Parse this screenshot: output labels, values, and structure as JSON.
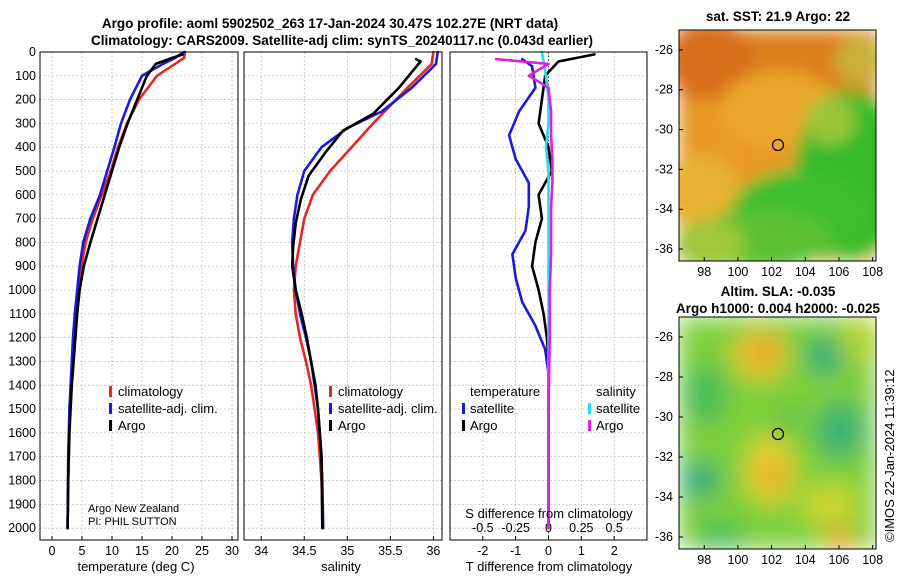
{
  "title": {
    "line1": "Argo profile: aoml 5902502_263 17-Jan-2024 30.47S 102.27E (NRT data)",
    "line2": "Climatology: CARS2009. Satellite-adj clim: synTS_20240117.nc (0.043d earlier)"
  },
  "footer": {
    "provider": "Argo New Zealand",
    "pi": "PI: PHIL SUTTON",
    "imos": "©IMOS 22-Jan-2024 11:39:12"
  },
  "colors": {
    "climatology": "#e8261e",
    "satellite": "#1a1adc",
    "argo": "#000000",
    "sat_salinity": "#22e0f0",
    "argo_salinity": "#e020e0"
  },
  "chart_data": [
    {
      "id": "temperature",
      "type": "line",
      "xlabel": "temperature (deg C)",
      "ylabel": "",
      "xlim": [
        -2,
        31
      ],
      "ylim": [
        2050,
        0
      ],
      "xticks": [
        "0",
        "5",
        "10",
        "15",
        "20",
        "25",
        "30"
      ],
      "yticks": [
        "0",
        "100",
        "200",
        "300",
        "400",
        "500",
        "600",
        "700",
        "800",
        "900",
        "1000",
        "1100",
        "1200",
        "1300",
        "1400",
        "1500",
        "1600",
        "1700",
        "1800",
        "1900",
        "2000"
      ],
      "legend": [
        "climatology",
        "satellite-adj. clim.",
        "Argo"
      ],
      "series": [
        {
          "name": "climatology",
          "color": "#e8261e",
          "x": [
            22.2,
            22.0,
            20.5,
            17.5,
            14.5,
            12.5,
            11.0,
            9.8,
            8.3,
            6.8,
            5.6,
            4.9,
            4.4,
            4.0,
            3.7,
            3.4,
            3.2,
            3.0,
            2.9,
            2.8,
            2.7,
            2.6
          ],
          "y": [
            0,
            25,
            50,
            100,
            200,
            300,
            400,
            500,
            600,
            700,
            800,
            900,
            1000,
            1100,
            1200,
            1300,
            1400,
            1500,
            1600,
            1700,
            1800,
            2000
          ]
        },
        {
          "name": "satellite-adj. clim.",
          "color": "#1a1adc",
          "x": [
            22.0,
            20.5,
            18.5,
            15.0,
            13.0,
            11.5,
            10.4,
            9.2,
            8.0,
            6.4,
            5.2,
            4.6,
            4.2,
            3.8,
            3.5,
            3.3,
            3.1,
            2.9,
            2.8,
            2.7,
            2.6
          ],
          "y": [
            0,
            25,
            50,
            100,
            200,
            300,
            400,
            500,
            600,
            700,
            800,
            900,
            1000,
            1100,
            1200,
            1300,
            1400,
            1500,
            1600,
            1700,
            2000
          ]
        },
        {
          "name": "Argo",
          "color": "#000000",
          "x": [
            21.8,
            20.0,
            17.3,
            15.8,
            14.2,
            12.6,
            11.2,
            10.0,
            8.8,
            7.6,
            6.4,
            5.3,
            4.6,
            4.2,
            3.9,
            3.6,
            3.3,
            3.1,
            2.9,
            2.7,
            2.6
          ],
          "y": [
            10,
            25,
            50,
            100,
            200,
            300,
            400,
            500,
            600,
            700,
            800,
            900,
            1000,
            1100,
            1200,
            1300,
            1400,
            1500,
            1600,
            1800,
            2000
          ]
        }
      ]
    },
    {
      "id": "salinity",
      "type": "line",
      "xlabel": "salinity",
      "xlim": [
        33.8,
        36.1
      ],
      "ylim": [
        2050,
        0
      ],
      "xticks": [
        "34",
        "34.5",
        "35",
        "35.5",
        "36"
      ],
      "legend": [
        "climatology",
        "satellite-adj. clim.",
        "Argo"
      ],
      "series": [
        {
          "name": "climatology",
          "color": "#e8261e",
          "x": [
            36.0,
            35.98,
            35.7,
            35.3,
            35.05,
            34.8,
            34.6,
            34.5,
            34.45,
            34.4,
            34.38,
            34.4,
            34.45,
            34.52,
            34.58,
            34.62,
            34.66,
            34.68,
            34.7,
            34.71,
            34.72
          ],
          "y": [
            0,
            50,
            150,
            300,
            400,
            500,
            600,
            700,
            800,
            900,
            1000,
            1100,
            1200,
            1300,
            1400,
            1500,
            1600,
            1700,
            1800,
            1900,
            2000
          ]
        },
        {
          "name": "satellite-adj. clim.",
          "color": "#1a1adc",
          "x": [
            36.05,
            36.03,
            35.75,
            35.4,
            35.0,
            34.7,
            34.5,
            34.42,
            34.38,
            34.36,
            34.37,
            34.4,
            34.45,
            34.52,
            34.58,
            34.62,
            34.66,
            34.68,
            34.7,
            34.71,
            34.72
          ],
          "y": [
            0,
            50,
            150,
            250,
            320,
            400,
            500,
            600,
            700,
            800,
            900,
            1000,
            1100,
            1200,
            1300,
            1400,
            1500,
            1600,
            1700,
            1800,
            2000
          ]
        },
        {
          "name": "Argo",
          "color": "#000000",
          "x": [
            35.8,
            35.85,
            35.6,
            35.3,
            34.95,
            34.75,
            34.55,
            34.46,
            34.4,
            34.37,
            34.36,
            34.4,
            34.47,
            34.53,
            34.58,
            34.63,
            34.66,
            34.68,
            34.7,
            34.71
          ],
          "y": [
            30,
            40,
            150,
            260,
            330,
            420,
            520,
            620,
            720,
            820,
            900,
            1000,
            1100,
            1200,
            1300,
            1400,
            1500,
            1600,
            1700,
            2000
          ]
        }
      ]
    },
    {
      "id": "difference",
      "type": "line",
      "xlabel": "T difference from climatology",
      "x2label": "S difference from climatology",
      "xlim": [
        -3,
        3
      ],
      "s_xlim": [
        -0.75,
        0.75
      ],
      "ylim": [
        2050,
        0
      ],
      "xticks": [
        "-2",
        "-1",
        "0",
        "1",
        "2"
      ],
      "s_xticks": [
        "-0.5",
        "-0.25",
        "0",
        "0.25",
        "0.5"
      ],
      "legend_temperature": {
        "title": "temperature",
        "items": [
          "satellite",
          "Argo"
        ]
      },
      "legend_salinity": {
        "title": "salinity",
        "items": [
          "satellite",
          "Argo"
        ]
      },
      "series": [
        {
          "name": "T satellite",
          "color": "#1a1adc",
          "x": [
            -0.8,
            -0.5,
            -0.4,
            -0.9,
            -1.2,
            -1.0,
            -0.6,
            -0.6,
            -0.7,
            -1.1,
            -1.0,
            -0.8,
            -0.4,
            -0.1,
            0.0,
            0.0,
            0.0,
            0.0,
            0.0,
            0.0
          ],
          "y": [
            30,
            60,
            150,
            250,
            350,
            450,
            550,
            650,
            750,
            850,
            950,
            1050,
            1150,
            1250,
            1350,
            1500,
            1600,
            1700,
            1800,
            2000
          ]
        },
        {
          "name": "T Argo",
          "color": "#000000",
          "x": [
            1.4,
            0.3,
            -0.1,
            -0.2,
            -0.3,
            0.0,
            0.1,
            -0.3,
            -0.2,
            -0.4,
            -0.5,
            -0.3,
            -0.15,
            -0.05,
            0.0,
            0.0,
            0.0,
            0.0,
            0.0
          ],
          "y": [
            10,
            40,
            100,
            200,
            300,
            400,
            500,
            600,
            700,
            800,
            900,
            1000,
            1100,
            1200,
            1300,
            1450,
            1600,
            1800,
            2000
          ]
        },
        {
          "name": "S satellite",
          "color": "#22e0f0",
          "x": [
            -0.05,
            -0.02,
            0.0,
            0.0,
            -0.02,
            0.0,
            0.0,
            0.0,
            0.0,
            0.0,
            0.0,
            0.0,
            0.0
          ],
          "y": [
            0,
            100,
            200,
            300,
            400,
            500,
            600,
            800,
            1000,
            1200,
            1500,
            1800,
            2000
          ]
        },
        {
          "name": "S Argo",
          "color": "#e020e0",
          "x": [
            -0.4,
            0.0,
            -0.15,
            0.0,
            0.02,
            0.02,
            0.03,
            0.03,
            0.02,
            0.02,
            0.02,
            0.01,
            0.01,
            0.0,
            0.0
          ],
          "y": [
            30,
            50,
            100,
            150,
            250,
            350,
            450,
            550,
            650,
            750,
            850,
            1000,
            1200,
            1500,
            2000
          ]
        }
      ]
    },
    {
      "id": "sst_map",
      "type": "heatmap",
      "title": "sat. SST: 21.9  Argo: 22",
      "xlim": [
        96.5,
        108.2
      ],
      "ylim": [
        -36.6,
        -25
      ],
      "xticks": [
        "98",
        "100",
        "102",
        "104",
        "106",
        "108"
      ],
      "yticks": [
        "-26",
        "-28",
        "-30",
        "-32",
        "-34",
        "-36"
      ],
      "marker": {
        "lon": 102.27,
        "lat": -30.47
      }
    },
    {
      "id": "sla_map",
      "type": "heatmap",
      "title": "Altim. SLA: -0.035",
      "subtitle": "Argo h1000: 0.004  h2000: -0.025",
      "xlim": [
        96.5,
        108.2
      ],
      "ylim": [
        -36.6,
        -25
      ],
      "xticks": [
        "98",
        "100",
        "102",
        "104",
        "106",
        "108"
      ],
      "yticks": [
        "-26",
        "-28",
        "-30",
        "-32",
        "-34",
        "-36"
      ],
      "marker": {
        "lon": 102.27,
        "lat": -30.47
      }
    }
  ]
}
